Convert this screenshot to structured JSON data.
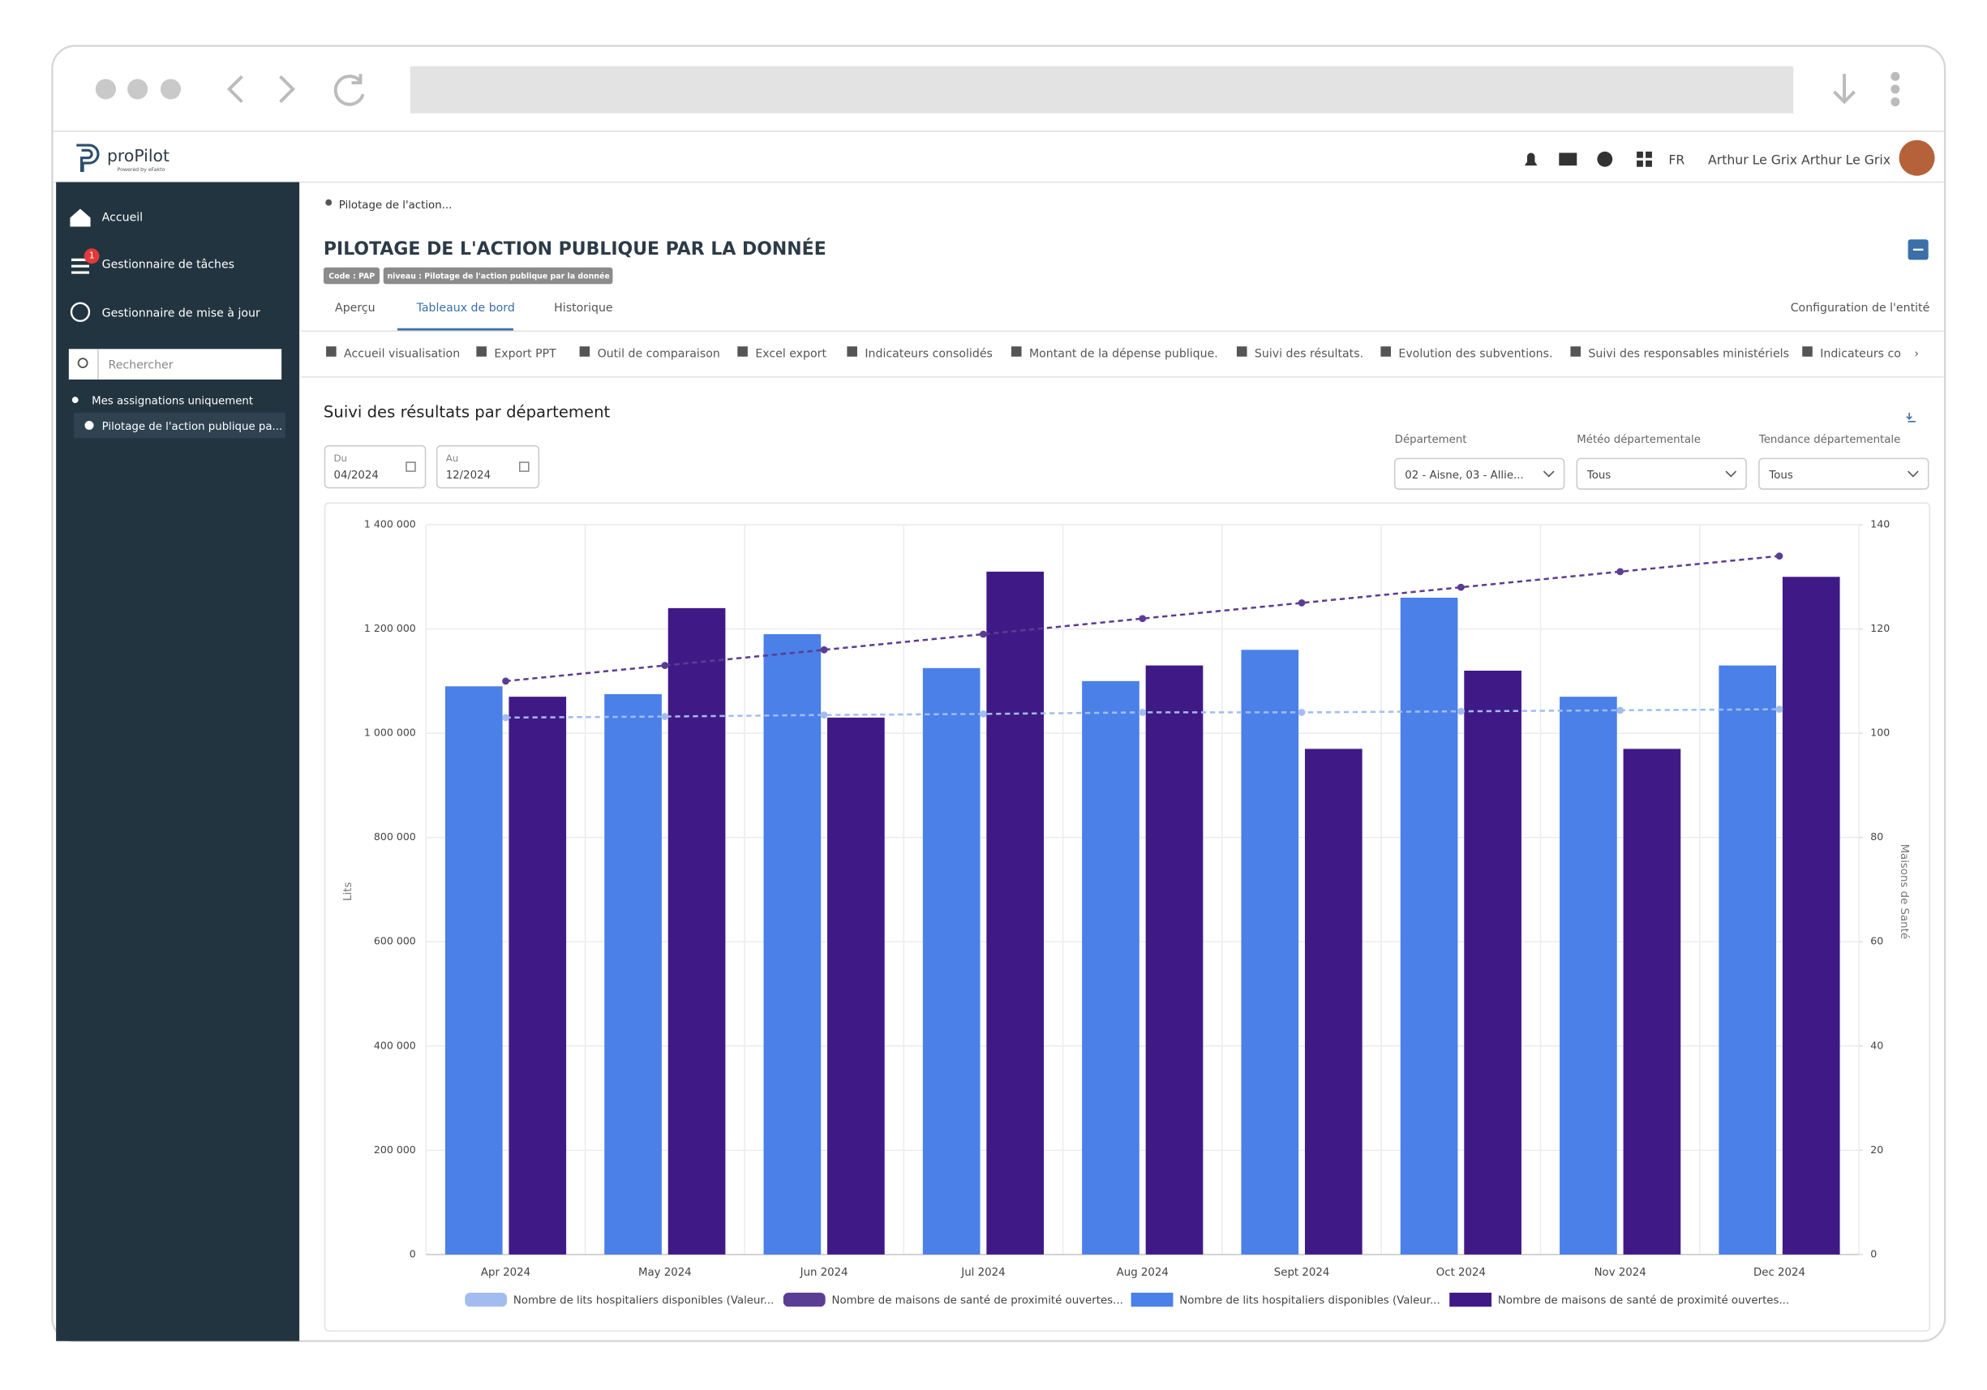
{
  "header": {
    "logo": "proPilot",
    "powered": "Powered by eFakto",
    "lang": "FR",
    "user": "Arthur Le Grix Arthur Le Grix"
  },
  "sidebar": {
    "items": [
      "Accueil",
      "Gestionnaire de tâches",
      "Gestionnaire de mise à jour"
    ],
    "badge": "1",
    "search": "Rechercher",
    "filter": "Mes assignations uniquement",
    "tree_item": "Pilotage de l'action publique pa..."
  },
  "breadcrumb": "Pilotage de l'action...",
  "page": {
    "title": "PILOTAGE DE L'ACTION PUBLIQUE PAR LA DONNÉE",
    "tags": [
      "Code : PAP",
      "niveau : Pilotage de l'action publique par la donnée"
    ],
    "tabs": [
      "Aperçu",
      "Tableaux de bord",
      "Historique"
    ],
    "config": "Configuration de l'entité"
  },
  "subtabs": [
    "Accueil visualisation",
    "Export PPT",
    "Outil de comparaison",
    "Excel export",
    "Indicateurs consolidés",
    "Montant de la dépense publique.",
    "Suivi des résultats.",
    "Evolution des subventions.",
    "Suivi des responsables ministériels",
    "Indicateurs co"
  ],
  "section_title": "Suivi des résultats par département",
  "filters": {
    "from": {
      "label": "Du",
      "value": "04/2024"
    },
    "to": {
      "label": "Au",
      "value": "12/2024"
    },
    "dropdowns": [
      {
        "label": "Département",
        "value": "02 - Aisne, 03 - Allie..."
      },
      {
        "label": "Météo départementale",
        "value": "Tous"
      },
      {
        "label": "Tendance départementale",
        "value": "Tous"
      }
    ]
  },
  "chart_data": {
    "type": "bar",
    "categories": [
      "Apr 2024",
      "May 2024",
      "Jun 2024",
      "Jul 2024",
      "Aug 2024",
      "Sept 2024",
      "Oct 2024",
      "Nov 2024",
      "Dec 2024"
    ],
    "series": [
      {
        "name": "Nombre de lits hospitaliers disponibles (Valeur...",
        "type": "line",
        "line_style": "dashed",
        "color": "#a3bcf0",
        "values": [
          1030000,
          1032000,
          1035000,
          1037000,
          1040000,
          1040000,
          1042000,
          1044000,
          1046000
        ]
      },
      {
        "name": "Nombre de maisons de santé de proximité ouvertes...",
        "type": "line",
        "line_style": "dashed",
        "color": "#5b3d93",
        "axis": "y2",
        "values": [
          110,
          113,
          116,
          119,
          122,
          125,
          128,
          131,
          134
        ]
      },
      {
        "name": "Nombre de lits hospitaliers disponibles (Valeur...",
        "type": "bar",
        "color": "#4a80e8",
        "values": [
          1090000,
          1075000,
          1190000,
          1125000,
          1100000,
          1160000,
          1260000,
          1070000,
          1130000
        ]
      },
      {
        "name": "Nombre de maisons de santé de proximité ouvertes...",
        "type": "bar",
        "color": "#3f1a87",
        "axis": "y2",
        "values": [
          107,
          124,
          103,
          131,
          113,
          97,
          112,
          97,
          130
        ]
      }
    ],
    "y_label": "Lits",
    "y2_label": "Maisons de Santé",
    "ylim": [
      0,
      1400000
    ],
    "yticks": [
      0,
      {
        "value": 200000,
        "label": "200 000"
      },
      {
        "value": 400000,
        "label": "400 000"
      },
      {
        "value": 600000,
        "label": "600 000"
      },
      {
        "value": 800000,
        "label": "800 000"
      },
      {
        "value": 1000000,
        "label": "1 000 000"
      },
      {
        "value": 1200000,
        "label": "1 200 000"
      },
      {
        "value": 1400000,
        "label": "1 400 000"
      }
    ],
    "y2lim": [
      0,
      140
    ],
    "y2ticks": [
      0,
      20,
      40,
      60,
      80,
      100,
      120,
      140
    ],
    "grid": true,
    "legend": "bottom"
  }
}
